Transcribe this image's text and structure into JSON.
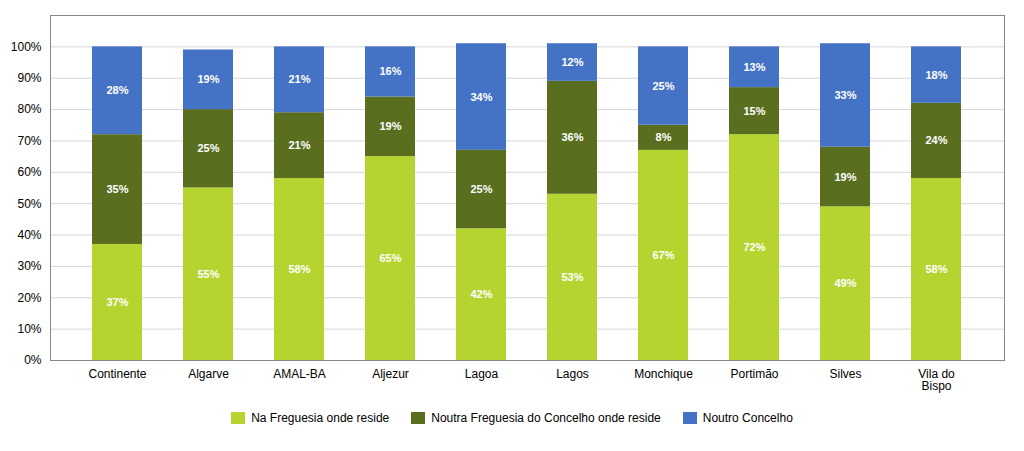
{
  "chart_data": {
    "type": "bar",
    "stacked": true,
    "categories": [
      "Continente",
      "Algarve",
      "AMAL-BA",
      "Aljezur",
      "Lagoa",
      "Lagos",
      "Monchique",
      "Portimão",
      "Silves",
      "Vila do\nBispo"
    ],
    "series": [
      {
        "name": "Na Freguesia onde reside",
        "color": "#b5d430",
        "values": [
          37,
          55,
          58,
          65,
          42,
          53,
          67,
          72,
          49,
          58
        ],
        "value_labels": [
          "37%",
          "55%",
          "58%",
          "65%",
          "42%",
          "53%",
          "67%",
          "72%",
          "49%",
          "58%"
        ]
      },
      {
        "name": "Noutra Freguesia do Concelho onde reside",
        "color": "#5a6e1f",
        "values": [
          35,
          25,
          21,
          19,
          25,
          36,
          8,
          15,
          19,
          24
        ],
        "value_labels": [
          "35%",
          "25%",
          "21%",
          "19%",
          "25%",
          "36%",
          "8%",
          "15%",
          "19%",
          "24%"
        ]
      },
      {
        "name": "Noutro Concelho",
        "color": "#4472c4",
        "values": [
          28,
          19,
          21,
          16,
          34,
          12,
          25,
          13,
          33,
          18
        ],
        "value_labels": [
          "28%",
          "19%",
          "21%",
          "16%",
          "34%",
          "12%",
          "25%",
          "13%",
          "33%",
          "18%"
        ]
      }
    ],
    "ylim": [
      0,
      110
    ],
    "yticks": [
      {
        "value": 0,
        "label": "0%"
      },
      {
        "value": 10,
        "label": "10%"
      },
      {
        "value": 20,
        "label": "20%"
      },
      {
        "value": 30,
        "label": "30%"
      },
      {
        "value": 40,
        "label": "40%"
      },
      {
        "value": 50,
        "label": "50%"
      },
      {
        "value": 60,
        "label": "60%"
      },
      {
        "value": 70,
        "label": "70%"
      },
      {
        "value": 80,
        "label": "80%"
      },
      {
        "value": 90,
        "label": "90%"
      },
      {
        "value": 100,
        "label": "100%"
      }
    ],
    "grid": true,
    "data_labels": true,
    "legend": "bottom"
  }
}
